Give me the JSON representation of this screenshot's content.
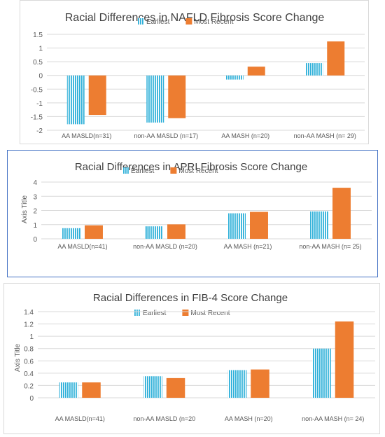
{
  "colors": {
    "earliest": "#2fb0d9",
    "most_recent": "#ed7d31",
    "grid": "#d9d9d9",
    "text": "#595959",
    "title": "#404040"
  },
  "chart_data": [
    {
      "type": "bar",
      "title": "Racial Differences in NAFLD Fibrosis Score Change",
      "xlabel": "",
      "ylabel": "",
      "categories": [
        "AA MASLD(n=31)",
        "non-AA MASLD (n=17)",
        "AA MASH (n=20)",
        "non-AA MASH (n= 29)"
      ],
      "series": [
        {
          "name": "Earliest",
          "values": [
            -1.78,
            -1.72,
            -0.15,
            0.45
          ],
          "pattern": "vertical-stripes"
        },
        {
          "name": "Most Recent",
          "values": [
            -1.44,
            -1.56,
            0.32,
            1.24
          ],
          "pattern": "solid"
        }
      ],
      "ylim": [
        -2,
        1.5
      ],
      "yticks": [
        -2,
        -1.5,
        -1,
        -0.5,
        0,
        0.5,
        1,
        1.5
      ],
      "ytick_labels": [
        "-2",
        "-1.5",
        "-1",
        "-0.5",
        "0",
        "0.5",
        "1",
        "1.5"
      ],
      "grid": true,
      "legend": "top-center"
    },
    {
      "type": "bar",
      "title": "Racial Differences in APRI Fibrosis Score Change",
      "xlabel": "",
      "ylabel": "Axis Title",
      "categories": [
        "AA MASLD(n=41)",
        "non-AA MASLD (n=20)",
        "AA MASH (n=21)",
        "non-AA MASH (n= 25)"
      ],
      "series": [
        {
          "name": "Earliest",
          "values": [
            0.75,
            0.88,
            1.8,
            1.93
          ],
          "pattern": "vertical-stripes"
        },
        {
          "name": "Most Recent",
          "values": [
            0.95,
            1.02,
            1.9,
            3.6
          ],
          "pattern": "solid"
        }
      ],
      "ylim": [
        0,
        4
      ],
      "yticks": [
        0,
        1,
        2,
        3,
        4
      ],
      "ytick_labels": [
        "0",
        "1",
        "2",
        "3",
        "4"
      ],
      "grid": true,
      "legend": "top-center"
    },
    {
      "type": "bar",
      "title": "Racial Differences in FIB-4 Score Change",
      "xlabel": "",
      "ylabel": "Axis Title",
      "categories": [
        "AA MASLD(n=41)",
        "non-AA MASLD (n=20",
        "AA MASH (n=20)",
        "non-AA MASH (n= 24)"
      ],
      "series": [
        {
          "name": "Earliest",
          "values": [
            0.25,
            0.35,
            0.45,
            0.8
          ],
          "pattern": "vertical-stripes"
        },
        {
          "name": "Most Recent",
          "values": [
            0.25,
            0.32,
            0.46,
            1.24
          ],
          "pattern": "solid"
        }
      ],
      "ylim": [
        0,
        1.4
      ],
      "yticks": [
        0,
        0.2,
        0.4,
        0.6,
        0.8,
        1,
        1.2,
        1.4
      ],
      "ytick_labels": [
        "0",
        "0.2",
        "0.4",
        "0.6",
        "0.8",
        "1",
        "1.2",
        "1.4"
      ],
      "grid": true,
      "legend": "top-center"
    }
  ]
}
